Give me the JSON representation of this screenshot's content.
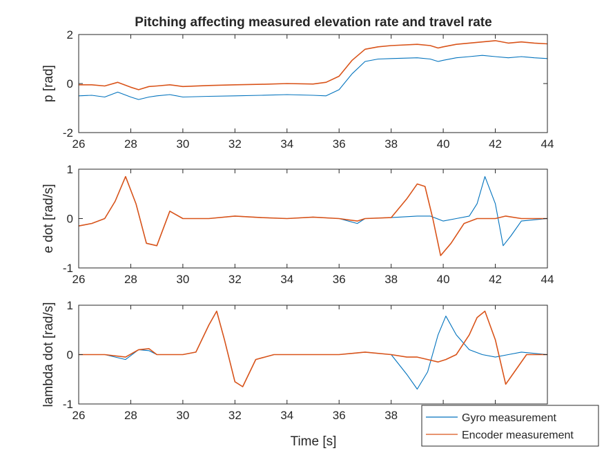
{
  "figure": {
    "title": "Pitching affecting measured elevation rate and travel rate",
    "xlabel": "Time [s]"
  },
  "legend": {
    "placement": "bottom-right",
    "entries": [
      {
        "label": "Gyro measurement",
        "color": "#0072BD"
      },
      {
        "label": "Encoder measurement",
        "color": "#D95319"
      }
    ]
  },
  "chart_data": [
    {
      "type": "line",
      "ylabel": "p [rad]",
      "xlim": [
        26,
        44
      ],
      "ylim": [
        -2,
        2
      ],
      "xticks": [
        26,
        28,
        30,
        32,
        34,
        36,
        38,
        40,
        42,
        44
      ],
      "yticks": [
        -2,
        0,
        2
      ],
      "series": [
        {
          "name": "Gyro measurement",
          "color": "#0072BD",
          "x": [
            26,
            26.5,
            27,
            27.5,
            28,
            28.3,
            28.7,
            29,
            29.5,
            30,
            31,
            32,
            33,
            34,
            35,
            35.5,
            36,
            36.5,
            37,
            37.5,
            38,
            39,
            39.5,
            39.8,
            40,
            40.5,
            41,
            41.5,
            42,
            42.5,
            43,
            43.5,
            44
          ],
          "y": [
            -0.5,
            -0.48,
            -0.55,
            -0.35,
            -0.55,
            -0.65,
            -0.55,
            -0.5,
            -0.45,
            -0.55,
            -0.52,
            -0.5,
            -0.48,
            -0.45,
            -0.48,
            -0.5,
            -0.25,
            0.4,
            0.9,
            1.0,
            1.02,
            1.05,
            1.0,
            0.9,
            0.95,
            1.05,
            1.1,
            1.15,
            1.1,
            1.05,
            1.1,
            1.05,
            1.02
          ]
        },
        {
          "name": "Encoder measurement",
          "color": "#D95319",
          "x": [
            26,
            26.5,
            27,
            27.5,
            28,
            28.3,
            28.7,
            29,
            29.5,
            30,
            31,
            32,
            33,
            34,
            35,
            35.5,
            36,
            36.5,
            37,
            37.5,
            38,
            39,
            39.5,
            39.8,
            40,
            40.5,
            41,
            41.5,
            42,
            42.5,
            43,
            43.5,
            44
          ],
          "y": [
            -0.05,
            -0.05,
            -0.1,
            0.05,
            -0.15,
            -0.25,
            -0.12,
            -0.1,
            -0.05,
            -0.12,
            -0.08,
            -0.05,
            -0.03,
            0.0,
            -0.02,
            0.05,
            0.3,
            0.95,
            1.4,
            1.5,
            1.55,
            1.6,
            1.55,
            1.45,
            1.5,
            1.6,
            1.65,
            1.7,
            1.75,
            1.65,
            1.7,
            1.65,
            1.62
          ]
        }
      ]
    },
    {
      "type": "line",
      "ylabel": "e dot [rad/s]",
      "xlim": [
        26,
        44
      ],
      "ylim": [
        -1,
        1
      ],
      "xticks": [
        26,
        28,
        30,
        32,
        34,
        36,
        38,
        40,
        42,
        44
      ],
      "yticks": [
        -1,
        0,
        1
      ],
      "series": [
        {
          "name": "Gyro measurement",
          "color": "#0072BD",
          "x": [
            26,
            26.5,
            27,
            27.4,
            27.8,
            28.2,
            28.6,
            29.0,
            29.5,
            30,
            31,
            32,
            33,
            34,
            35,
            36,
            36.7,
            37,
            38,
            39,
            39.5,
            40,
            40.5,
            41,
            41.3,
            41.6,
            42,
            42.3,
            42.6,
            43,
            44
          ],
          "y": [
            -0.15,
            -0.1,
            0.0,
            0.35,
            0.85,
            0.3,
            -0.5,
            -0.55,
            0.15,
            0.0,
            0.0,
            0.05,
            0.02,
            0.0,
            0.03,
            0.0,
            -0.1,
            0.0,
            0.02,
            0.05,
            0.05,
            -0.05,
            0.0,
            0.05,
            0.3,
            0.85,
            0.3,
            -0.55,
            -0.35,
            -0.05,
            0.0
          ]
        },
        {
          "name": "Encoder measurement",
          "color": "#D95319",
          "x": [
            26,
            26.5,
            27,
            27.4,
            27.8,
            28.2,
            28.6,
            29.0,
            29.5,
            30,
            31,
            32,
            33,
            34,
            35,
            36,
            36.7,
            37,
            38,
            38.6,
            39,
            39.3,
            39.6,
            39.9,
            40.3,
            40.8,
            41.3,
            41.6,
            42,
            42.4,
            43,
            44
          ],
          "y": [
            -0.15,
            -0.1,
            0.0,
            0.35,
            0.85,
            0.3,
            -0.5,
            -0.55,
            0.15,
            0.0,
            0.0,
            0.05,
            0.02,
            0.0,
            0.03,
            0.0,
            -0.05,
            0.0,
            0.02,
            0.4,
            0.7,
            0.65,
            0.0,
            -0.75,
            -0.5,
            -0.1,
            0.0,
            0.0,
            0.0,
            0.05,
            0.0,
            0.0
          ]
        }
      ]
    },
    {
      "type": "line",
      "ylabel": "lambda dot [rad/s]",
      "xlim": [
        26,
        44
      ],
      "ylim": [
        -1,
        1
      ],
      "xticks": [
        26,
        28,
        30,
        32,
        34,
        36,
        38,
        40,
        42,
        44
      ],
      "yticks": [
        -1,
        0,
        1
      ],
      "series": [
        {
          "name": "Gyro measurement",
          "color": "#0072BD",
          "x": [
            26,
            27,
            27.8,
            28.3,
            28.7,
            29,
            30,
            30.5,
            31,
            31.3,
            31.6,
            32,
            32.3,
            32.8,
            33.5,
            34,
            35,
            36,
            37,
            38,
            38.6,
            39.0,
            39.4,
            39.8,
            40.1,
            40.5,
            41,
            41.5,
            42,
            42.5,
            43,
            44
          ],
          "y": [
            0.0,
            0.0,
            -0.1,
            0.1,
            0.08,
            0.0,
            0.0,
            0.05,
            0.6,
            0.88,
            0.3,
            -0.55,
            -0.65,
            -0.1,
            0.0,
            0.0,
            0.0,
            0.0,
            0.05,
            0.0,
            -0.4,
            -0.7,
            -0.35,
            0.4,
            0.78,
            0.4,
            0.1,
            0.0,
            -0.05,
            0.0,
            0.05,
            0.0
          ]
        },
        {
          "name": "Encoder measurement",
          "color": "#D95319",
          "x": [
            26,
            27,
            27.8,
            28.3,
            28.7,
            29,
            30,
            30.5,
            31,
            31.3,
            31.6,
            32,
            32.3,
            32.8,
            33.5,
            34,
            35,
            36,
            37,
            38,
            38.6,
            39.0,
            39.4,
            39.8,
            40.1,
            40.5,
            41,
            41.3,
            41.6,
            42,
            42.4,
            42.8,
            43.2,
            44
          ],
          "y": [
            0.0,
            0.0,
            -0.05,
            0.1,
            0.12,
            0.0,
            0.0,
            0.05,
            0.6,
            0.88,
            0.3,
            -0.55,
            -0.65,
            -0.1,
            0.0,
            0.0,
            0.0,
            0.0,
            0.05,
            0.0,
            -0.05,
            -0.05,
            -0.1,
            -0.15,
            -0.1,
            0.0,
            0.4,
            0.75,
            0.88,
            0.3,
            -0.6,
            -0.3,
            0.0,
            0.0
          ]
        }
      ]
    }
  ]
}
